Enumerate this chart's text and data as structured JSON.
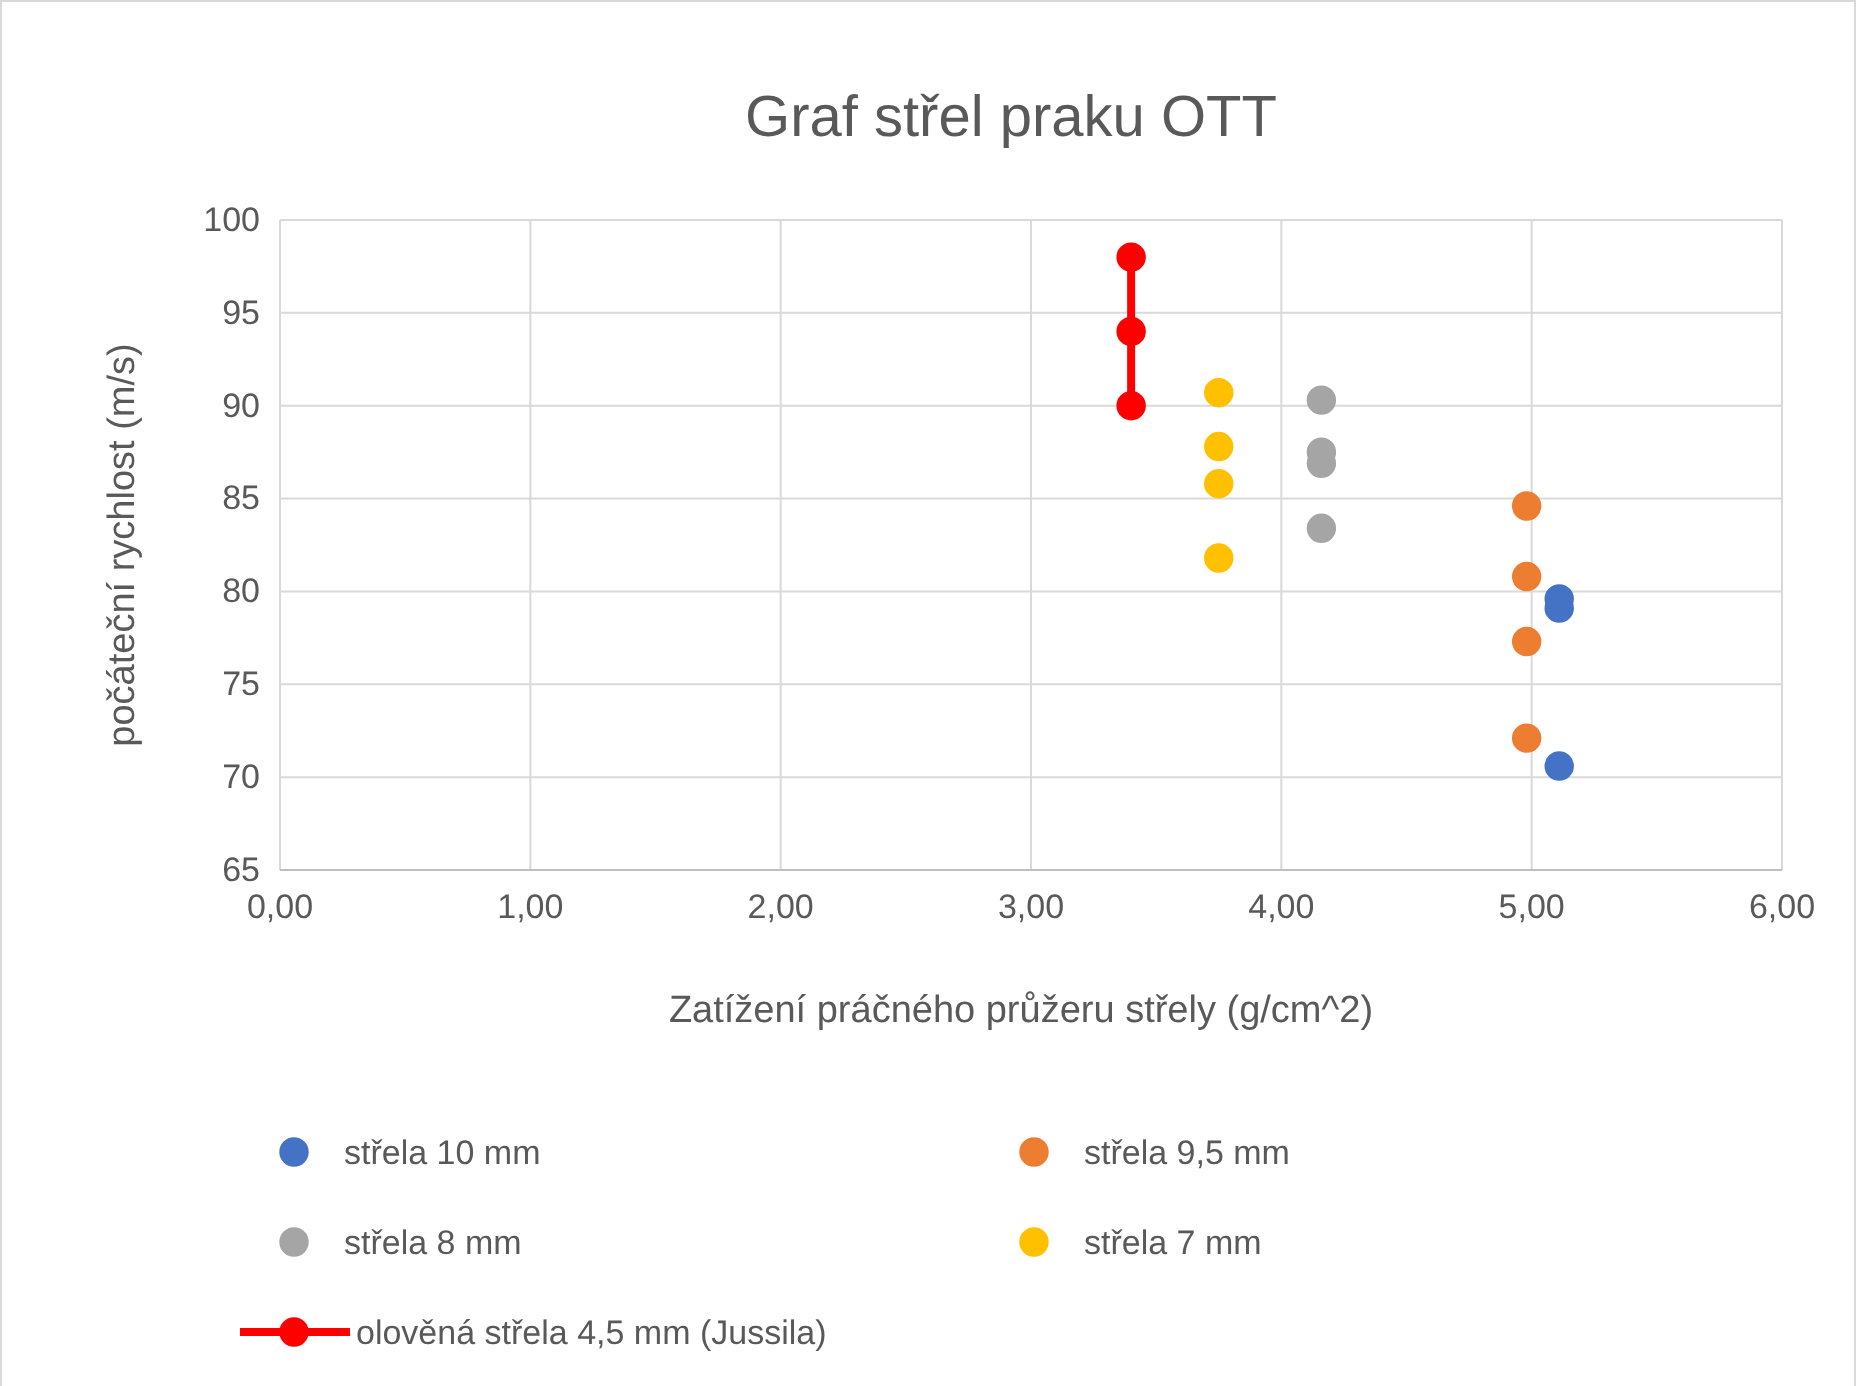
{
  "chart_data": {
    "type": "scatter",
    "title": "Graf střel praku OTT",
    "xlabel": "Zatížení práčného průžeru střely (g/cm^2)",
    "ylabel": "počáteční rychlost (m/s)",
    "xlim": [
      0,
      6
    ],
    "ylim": [
      65,
      100
    ],
    "xticks": [
      {
        "value": 0,
        "label": "0,00"
      },
      {
        "value": 1,
        "label": "1,00"
      },
      {
        "value": 2,
        "label": "2,00"
      },
      {
        "value": 3,
        "label": "3,00"
      },
      {
        "value": 4,
        "label": "4,00"
      },
      {
        "value": 5,
        "label": "5,00"
      },
      {
        "value": 6,
        "label": "6,00"
      }
    ],
    "yticks": [
      65,
      70,
      75,
      80,
      85,
      90,
      95,
      100
    ],
    "grid": true,
    "legend": "bottom",
    "marker": "circle",
    "series": [
      {
        "name": "střela 10 mm",
        "color": "#4472c4",
        "x": [
          5.11,
          5.11,
          5.11
        ],
        "values": [
          79.6,
          79.1,
          70.6
        ]
      },
      {
        "name": "střela 9,5 mm",
        "color": "#ed7d31",
        "x": [
          4.98,
          4.98,
          4.98,
          4.98
        ],
        "values": [
          84.6,
          80.8,
          77.3,
          72.1
        ]
      },
      {
        "name": "střela 8 mm",
        "color": "#a5a5a5",
        "x": [
          4.16,
          4.16,
          4.16,
          4.16
        ],
        "values": [
          90.3,
          87.5,
          86.9,
          83.4
        ]
      },
      {
        "name": "střela 7 mm",
        "color": "#ffc000",
        "x": [
          3.75,
          3.75,
          3.75,
          3.75
        ],
        "values": [
          90.7,
          87.8,
          85.8,
          81.8
        ]
      },
      {
        "name": "olověná střela 4,5 mm (Jussila)",
        "type": "line",
        "color": "#ff0000",
        "line_style": "solid",
        "x": [
          3.4,
          3.4,
          3.4
        ],
        "values": [
          98,
          94,
          90
        ]
      }
    ]
  }
}
